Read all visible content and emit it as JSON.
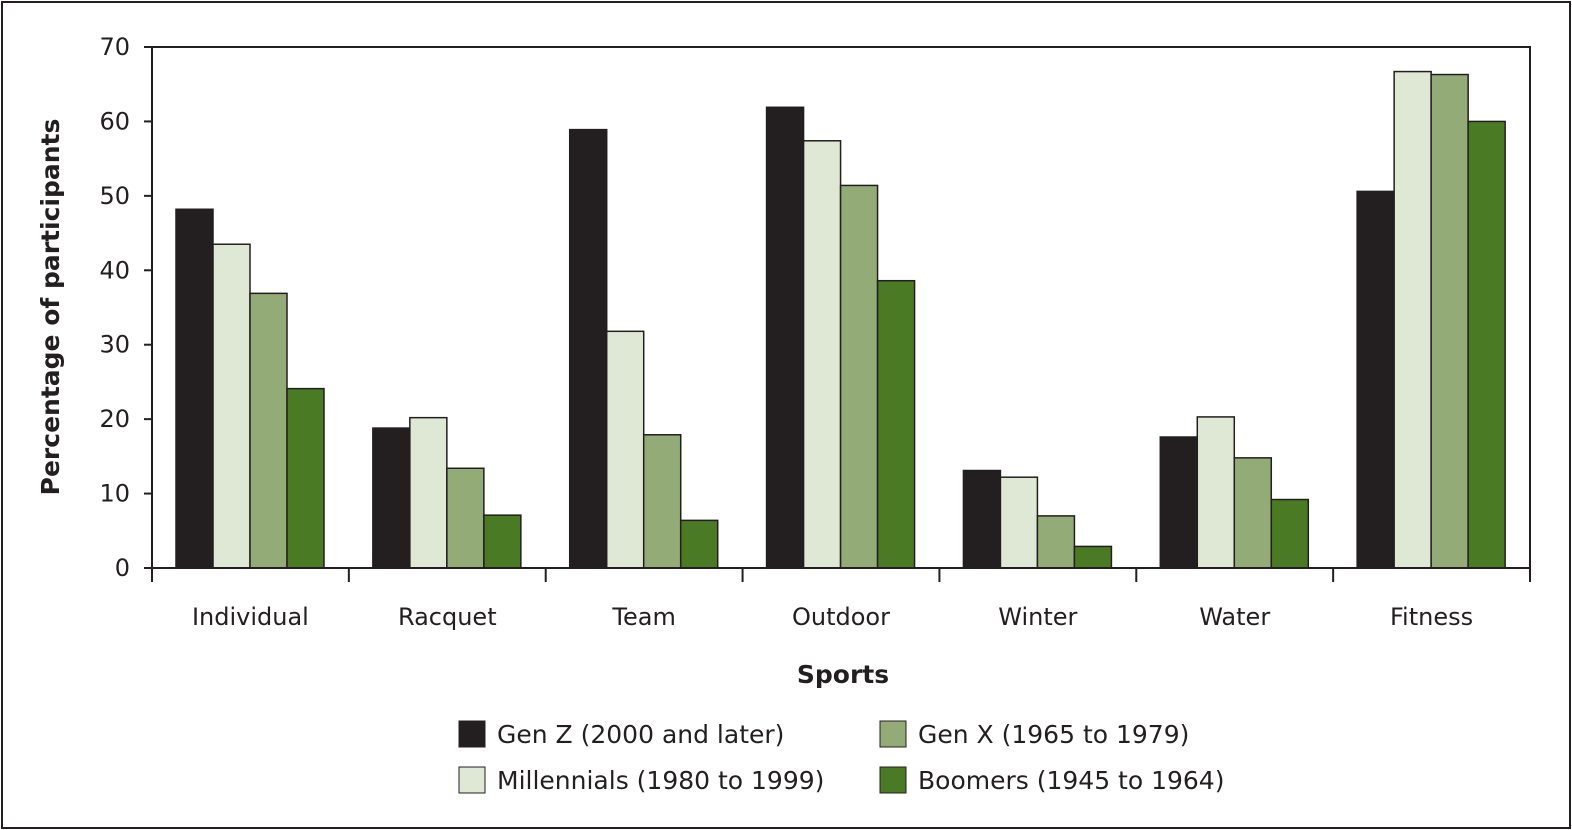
{
  "chart_data": {
    "type": "bar",
    "xlabel": "Sports",
    "ylabel": "Percentage of participants",
    "ylim": [
      0,
      70
    ],
    "yticks": [
      0,
      10,
      20,
      30,
      40,
      50,
      60,
      70
    ],
    "grid": false,
    "legend_position": "bottom",
    "categories": [
      "Individual",
      "Racquet",
      "Team",
      "Outdoor",
      "Winter",
      "Water",
      "Fitness"
    ],
    "series": [
      {
        "name": "Gen Z (2000 and later)",
        "color": "#231f20",
        "values": [
          48.2,
          18.8,
          58.9,
          61.9,
          13.1,
          17.6,
          50.6
        ]
      },
      {
        "name": "Millennials (1980 to 1999)",
        "color": "#dfe7d5",
        "values": [
          43.5,
          20.2,
          31.8,
          57.4,
          12.2,
          20.3,
          66.7
        ]
      },
      {
        "name": "Gen X (1965 to 1979)",
        "color": "#93ab76",
        "values": [
          36.9,
          13.4,
          17.9,
          51.4,
          7.0,
          14.8,
          66.3
        ]
      },
      {
        "name": "Boomers (1945 to 1964)",
        "color": "#4b7a25",
        "values": [
          24.1,
          7.1,
          6.4,
          38.6,
          2.9,
          9.2,
          60.0
        ]
      }
    ]
  }
}
